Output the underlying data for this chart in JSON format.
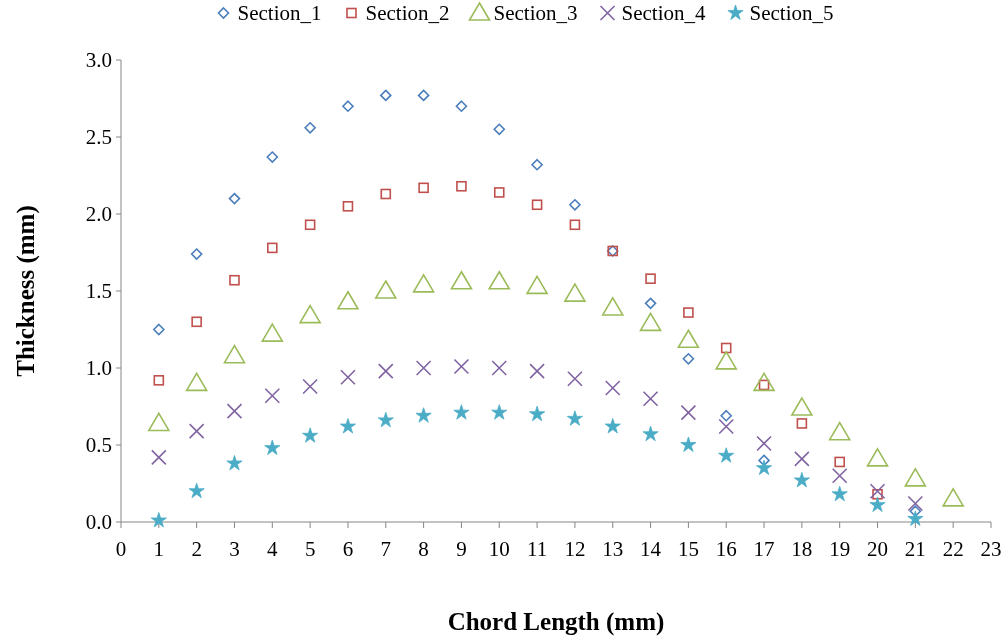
{
  "chart_data": {
    "type": "scatter",
    "xlabel": "Chord Length (mm)",
    "ylabel": "Thickness (mm)",
    "x": [
      1,
      2,
      3,
      4,
      5,
      6,
      7,
      8,
      9,
      10,
      11,
      12,
      13,
      14,
      15,
      16,
      17,
      18,
      19,
      20,
      21,
      22
    ],
    "xlim": [
      0,
      23
    ],
    "xticks": [
      0,
      1,
      2,
      3,
      4,
      5,
      6,
      7,
      8,
      9,
      10,
      11,
      12,
      13,
      14,
      15,
      16,
      17,
      18,
      19,
      20,
      21,
      22,
      23
    ],
    "ylim": [
      0,
      3
    ],
    "yticks": [
      {
        "value": 0,
        "label": "0.0"
      },
      {
        "value": 0.5,
        "label": "0.5"
      },
      {
        "value": 1,
        "label": "1.0"
      },
      {
        "value": 1.5,
        "label": "1.5"
      },
      {
        "value": 2,
        "label": "2.0"
      },
      {
        "value": 2.5,
        "label": "2.5"
      },
      {
        "value": 3,
        "label": "3.0"
      }
    ],
    "grid": false,
    "legend": "top",
    "series": [
      {
        "name": "Section_1",
        "color": "#4a7ebb",
        "marker": "diamond",
        "values": [
          1.25,
          1.74,
          2.1,
          2.37,
          2.56,
          2.7,
          2.77,
          2.77,
          2.7,
          2.55,
          2.32,
          2.06,
          1.76,
          1.42,
          1.06,
          0.69,
          0.4,
          null,
          null,
          null,
          0.07,
          null
        ]
      },
      {
        "name": "Section_2",
        "color": "#c0504d",
        "marker": "square",
        "values": [
          0.92,
          1.3,
          1.57,
          1.78,
          1.93,
          2.05,
          2.13,
          2.17,
          2.18,
          2.14,
          2.06,
          1.93,
          1.76,
          1.58,
          1.36,
          1.13,
          0.89,
          0.64,
          0.39,
          0.18,
          null,
          null
        ]
      },
      {
        "name": "Section_3",
        "color": "#9bbb59",
        "marker": "triangle",
        "values": [
          0.64,
          0.9,
          1.08,
          1.22,
          1.34,
          1.43,
          1.5,
          1.54,
          1.56,
          1.56,
          1.53,
          1.48,
          1.39,
          1.29,
          1.18,
          1.04,
          0.9,
          0.74,
          0.58,
          0.41,
          0.28,
          0.15
        ]
      },
      {
        "name": "Section_4",
        "color": "#8064a2",
        "marker": "cross",
        "values": [
          0.42,
          0.59,
          0.72,
          0.82,
          0.88,
          0.94,
          0.98,
          1.0,
          1.01,
          1.0,
          0.98,
          0.93,
          0.87,
          0.8,
          0.71,
          0.62,
          0.51,
          0.41,
          0.3,
          0.2,
          0.12,
          null
        ]
      },
      {
        "name": "Section_5",
        "color": "#4bacc6",
        "marker": "star",
        "values": [
          0.01,
          0.2,
          0.38,
          0.48,
          0.56,
          0.62,
          0.66,
          0.69,
          0.71,
          0.71,
          0.7,
          0.67,
          0.62,
          0.57,
          0.5,
          0.43,
          0.35,
          0.27,
          0.18,
          0.11,
          0.02,
          null
        ]
      }
    ]
  }
}
